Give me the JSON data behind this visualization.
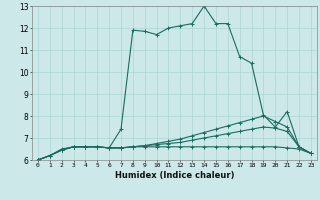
{
  "title": "",
  "xlabel": "Humidex (Indice chaleur)",
  "bg_color": "#cce8e8",
  "grid_color": "#aad4d4",
  "line_color": "#1a6b60",
  "xlim": [
    -0.5,
    23.5
  ],
  "ylim": [
    6,
    13
  ],
  "xticks": [
    0,
    1,
    2,
    3,
    4,
    5,
    6,
    7,
    8,
    9,
    10,
    11,
    12,
    13,
    14,
    15,
    16,
    17,
    18,
    19,
    20,
    21,
    22,
    23
  ],
  "yticks": [
    6,
    7,
    8,
    9,
    10,
    11,
    12,
    13
  ],
  "lines": [
    {
      "x": [
        0,
        1,
        2,
        3,
        4,
        5,
        6,
        7,
        8,
        9,
        10,
        11,
        12,
        13,
        14,
        15,
        16,
        17,
        18,
        19,
        20,
        21,
        22,
        23
      ],
      "y": [
        6.0,
        6.2,
        6.5,
        6.6,
        6.6,
        6.6,
        6.55,
        7.4,
        11.9,
        11.85,
        11.7,
        12.0,
        12.1,
        12.2,
        13.0,
        12.2,
        12.2,
        10.7,
        10.4,
        8.05,
        7.5,
        8.2,
        6.6,
        6.3
      ]
    },
    {
      "x": [
        0,
        1,
        2,
        3,
        4,
        5,
        6,
        7,
        8,
        9,
        10,
        11,
        12,
        13,
        14,
        15,
        16,
        17,
        18,
        19,
        20,
        21,
        22,
        23
      ],
      "y": [
        6.0,
        6.2,
        6.45,
        6.6,
        6.6,
        6.6,
        6.55,
        6.55,
        6.6,
        6.65,
        6.75,
        6.85,
        6.95,
        7.1,
        7.25,
        7.4,
        7.55,
        7.7,
        7.85,
        8.0,
        7.75,
        7.5,
        6.6,
        6.3
      ]
    },
    {
      "x": [
        0,
        1,
        2,
        3,
        4,
        5,
        6,
        7,
        8,
        9,
        10,
        11,
        12,
        13,
        14,
        15,
        16,
        17,
        18,
        19,
        20,
        21,
        22,
        23
      ],
      "y": [
        6.0,
        6.2,
        6.45,
        6.6,
        6.6,
        6.6,
        6.55,
        6.55,
        6.6,
        6.65,
        6.7,
        6.75,
        6.8,
        6.9,
        7.0,
        7.1,
        7.2,
        7.3,
        7.4,
        7.5,
        7.45,
        7.3,
        6.6,
        6.3
      ]
    },
    {
      "x": [
        0,
        1,
        2,
        3,
        4,
        5,
        6,
        7,
        8,
        9,
        10,
        11,
        12,
        13,
        14,
        15,
        16,
        17,
        18,
        19,
        20,
        21,
        22,
        23
      ],
      "y": [
        6.0,
        6.2,
        6.45,
        6.6,
        6.6,
        6.6,
        6.55,
        6.55,
        6.6,
        6.6,
        6.6,
        6.6,
        6.6,
        6.6,
        6.6,
        6.6,
        6.6,
        6.6,
        6.6,
        6.6,
        6.6,
        6.55,
        6.5,
        6.3
      ]
    }
  ]
}
